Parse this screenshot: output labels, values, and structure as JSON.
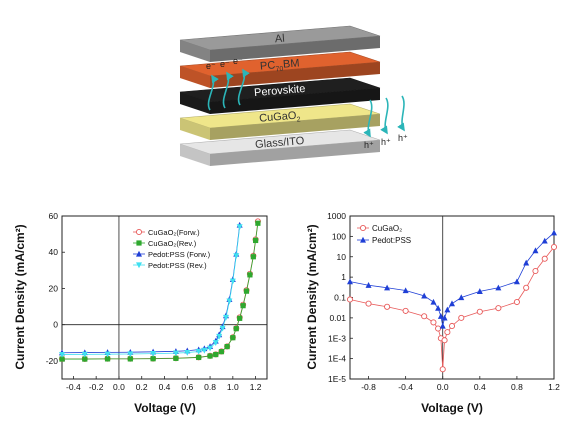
{
  "device": {
    "layers": [
      {
        "label": "Al",
        "sub": "",
        "tail": "",
        "color": "#9a9a9a"
      },
      {
        "label": "PC",
        "sub": "70",
        "tail": "BM",
        "color": "#e0622e"
      },
      {
        "label": "Perovskite",
        "sub": "",
        "tail": "",
        "color": "#1f1f1f"
      },
      {
        "label": "CuGaO",
        "sub": "2",
        "tail": "",
        "color": "#efe68a"
      },
      {
        "label": "Glass/ITO",
        "sub": "",
        "tail": "",
        "color": "#e6e6e6"
      }
    ],
    "electron_label": "e⁻",
    "hole_label": "h⁺",
    "arrow_color": "#2bb5b8"
  },
  "chart_data": [
    {
      "type": "line",
      "xlabel": "Voltage (V)",
      "ylabel": "Current Density (mA/cm²)",
      "xlim": [
        -0.5,
        1.3
      ],
      "ylim": [
        -30,
        60
      ],
      "xticks": [
        "-0.4",
        "-0.2",
        "0.0",
        "0.2",
        "0.4",
        "0.6",
        "0.8",
        "1.0",
        "1.2"
      ],
      "yticks": [
        "-20",
        "0",
        "20",
        "40",
        "60"
      ],
      "legend_position": "top-right",
      "series": [
        {
          "name": "CuGaO₂(Forw.)",
          "color": "#e85a5a",
          "marker": "open-circle",
          "x": [
            -0.5,
            -0.3,
            -0.1,
            0.1,
            0.3,
            0.5,
            0.7,
            0.8,
            0.85,
            0.9,
            0.95,
            1.0,
            1.03,
            1.06,
            1.09,
            1.12,
            1.15,
            1.18,
            1.2,
            1.22
          ],
          "y": [
            -18.9,
            -18.9,
            -18.8,
            -18.8,
            -18.7,
            -18.5,
            -18.0,
            -17.2,
            -16.4,
            -14.8,
            -12.0,
            -7.0,
            -2.0,
            4.0,
            11.0,
            19.0,
            28.0,
            38.0,
            47.0,
            57.0
          ]
        },
        {
          "name": "CuGaO₂(Rev.)",
          "color": "#2ea82e",
          "marker": "filled-square",
          "x": [
            -0.5,
            -0.3,
            -0.1,
            0.1,
            0.3,
            0.5,
            0.7,
            0.8,
            0.85,
            0.9,
            0.95,
            1.0,
            1.03,
            1.06,
            1.09,
            1.12,
            1.15,
            1.18,
            1.2,
            1.22
          ],
          "y": [
            -19.0,
            -19.0,
            -18.9,
            -18.9,
            -18.8,
            -18.6,
            -18.1,
            -17.3,
            -16.5,
            -14.9,
            -12.1,
            -7.2,
            -2.2,
            3.5,
            10.5,
            18.5,
            27.5,
            37.5,
            46.5,
            56.0
          ]
        },
        {
          "name": "Pedot:PSS (Forw.)",
          "color": "#1f3fd6",
          "marker": "filled-triangle-up",
          "x": [
            -0.5,
            -0.3,
            -0.1,
            0.1,
            0.3,
            0.5,
            0.6,
            0.7,
            0.75,
            0.8,
            0.85,
            0.88,
            0.91,
            0.94,
            0.97,
            1.0,
            1.03,
            1.06
          ],
          "y": [
            -15.5,
            -15.4,
            -15.3,
            -15.2,
            -15.0,
            -14.7,
            -14.4,
            -13.8,
            -13.2,
            -12.0,
            -9.0,
            -5.5,
            -1.0,
            5.0,
            14.0,
            25.0,
            39.0,
            55.0
          ]
        },
        {
          "name": "Pedot:PSS (Rev.)",
          "color": "#3fe0f0",
          "marker": "filled-triangle-down",
          "x": [
            -0.5,
            -0.3,
            -0.1,
            0.1,
            0.3,
            0.5,
            0.6,
            0.7,
            0.75,
            0.8,
            0.85,
            0.88,
            0.91,
            0.94,
            0.97,
            1.0,
            1.03,
            1.06
          ],
          "y": [
            -16.5,
            -16.4,
            -16.3,
            -16.2,
            -16.0,
            -15.7,
            -15.4,
            -14.8,
            -14.2,
            -13.0,
            -10.0,
            -6.5,
            -2.0,
            4.0,
            13.0,
            24.0,
            38.0,
            54.0
          ]
        }
      ]
    },
    {
      "type": "line",
      "xlabel": "Voltage (V)",
      "ylabel": "Current Density (mA/cm²)",
      "xlim": [
        -1.0,
        1.2
      ],
      "ylim": [
        1e-05,
        1000
      ],
      "yscale": "log",
      "xticks": [
        "-0.8",
        "-0.4",
        "0.0",
        "0.4",
        "0.8",
        "1.2"
      ],
      "yticks": [
        "1000",
        "100",
        "10",
        "1",
        "0.1",
        "0.01",
        "1E-3",
        "1E-4",
        "1E-5"
      ],
      "legend_position": "top-left",
      "series": [
        {
          "name": "CuGaO₂",
          "color": "#e85a5a",
          "marker": "open-circle",
          "x": [
            -1.0,
            -0.8,
            -0.6,
            -0.4,
            -0.2,
            -0.1,
            -0.05,
            -0.02,
            0.0,
            0.02,
            0.05,
            0.1,
            0.2,
            0.4,
            0.6,
            0.8,
            0.9,
            1.0,
            1.1,
            1.2
          ],
          "y": [
            0.08,
            0.05,
            0.035,
            0.022,
            0.012,
            0.006,
            0.003,
            0.001,
            3e-05,
            0.0008,
            0.002,
            0.004,
            0.01,
            0.02,
            0.03,
            0.06,
            0.3,
            2,
            8,
            30
          ]
        },
        {
          "name": "Pedot:PSS",
          "color": "#1f3fd6",
          "marker": "filled-triangle-up",
          "x": [
            -1.0,
            -0.8,
            -0.6,
            -0.4,
            -0.2,
            -0.1,
            -0.05,
            -0.02,
            0.0,
            0.02,
            0.05,
            0.1,
            0.2,
            0.4,
            0.6,
            0.8,
            0.9,
            1.0,
            1.1,
            1.2
          ],
          "y": [
            0.6,
            0.4,
            0.3,
            0.22,
            0.12,
            0.06,
            0.03,
            0.012,
            0.004,
            0.01,
            0.025,
            0.05,
            0.1,
            0.2,
            0.3,
            0.6,
            5,
            20,
            60,
            150
          ]
        }
      ]
    }
  ]
}
